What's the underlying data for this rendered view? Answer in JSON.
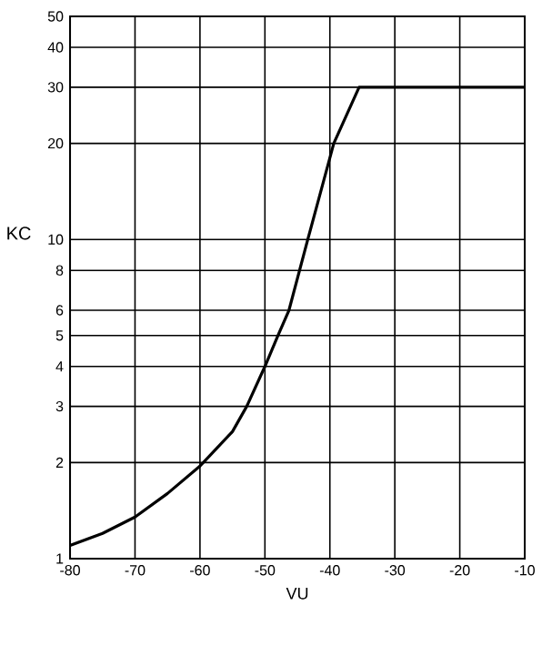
{
  "chart_data": {
    "type": "line",
    "xlabel": "VU",
    "ylabel": "KC",
    "log": "y",
    "xlim": [
      -80,
      -10
    ],
    "xticks": [
      -80,
      -70,
      -60,
      -50,
      -40,
      -30,
      -20,
      -10
    ],
    "ylim": [
      1,
      50
    ],
    "yticks": [
      1,
      2,
      3,
      4,
      5,
      6,
      8,
      10,
      20,
      30,
      40,
      50
    ],
    "grid": true,
    "marker": "none",
    "line_style": "solid",
    "series": [
      {
        "color": "#000000",
        "x": [
          -80,
          -75,
          -70,
          -65,
          -60,
          -55,
          -52.8,
          -50,
          -48,
          -46.3,
          -43.4,
          -39.4,
          -35.5,
          -10
        ],
        "values": [
          1.1,
          1.2,
          1.35,
          1.6,
          1.95,
          2.5,
          3,
          4,
          5,
          6,
          10,
          20,
          30,
          30
        ]
      }
    ]
  }
}
